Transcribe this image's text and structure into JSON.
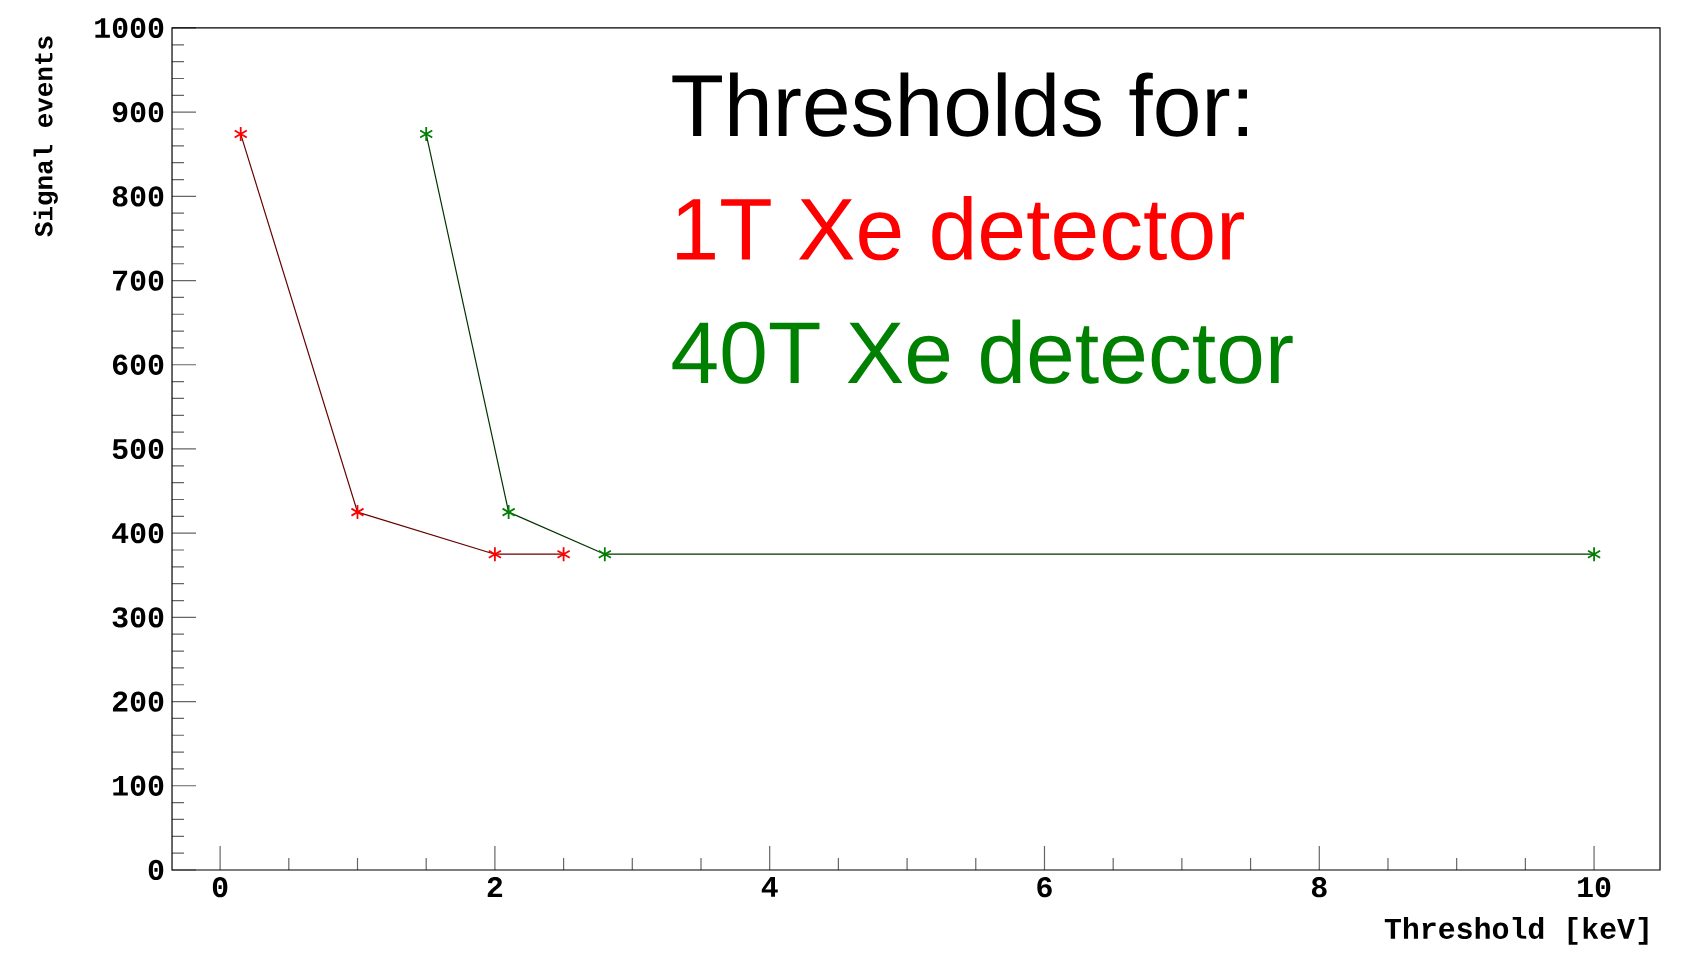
{
  "chart_data": {
    "type": "line",
    "xlabel": "Threshold [keV]",
    "ylabel": "Signal events",
    "legend_title": "Thresholds for:",
    "legend": "top right",
    "marker": "cross",
    "line_style": "solid",
    "grid": false,
    "xlim": [
      -0.35,
      10.48
    ],
    "xticks": [
      0,
      2,
      4,
      6,
      8,
      10
    ],
    "ylim": [
      0,
      1000
    ],
    "yticks": [
      0,
      100,
      200,
      300,
      400,
      500,
      600,
      700,
      800,
      900,
      1000
    ],
    "series": [
      {
        "name": "1T Xe detector",
        "color": "#ff0000",
        "x": [
          0.15,
          1.0,
          2.0,
          2.5
        ],
        "values": [
          874,
          425,
          375,
          375
        ]
      },
      {
        "name": "40T Xe detector",
        "color": "#008000",
        "x": [
          1.5,
          2.1,
          2.8,
          10
        ],
        "values": [
          874,
          425,
          375,
          375
        ]
      }
    ]
  }
}
